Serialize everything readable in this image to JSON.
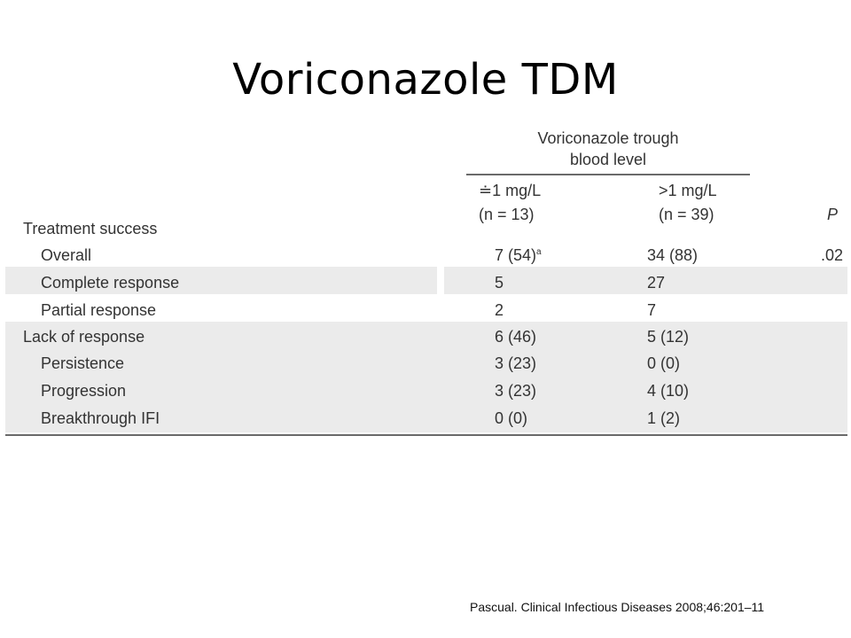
{
  "slide": {
    "title": "Voriconazole TDM",
    "citation": "Pascual. Clinical Infectious Diseases 2008;46:201–11"
  },
  "table": {
    "group_header_line1": "Voriconazole trough",
    "group_header_line2": "blood level",
    "col1_line1": "≐1 mg/L",
    "col1_line2": "(n = 13)",
    "col2_line1": ">1 mg/L",
    "col2_line2": "(n = 39)",
    "col3": "P",
    "section_label": "Treatment success",
    "rows": [
      {
        "label": "Overall",
        "c1": "7 (54)",
        "c1_sup": "a",
        "c2": "34 (88)",
        "p": ".02"
      },
      {
        "label": "Complete response",
        "c1": "5",
        "c1_sup": "",
        "c2": "27",
        "p": ""
      },
      {
        "label": "Partial response",
        "c1": "2",
        "c1_sup": "",
        "c2": "7",
        "p": ""
      },
      {
        "label": "Lack of response",
        "c1": "6 (46)",
        "c1_sup": "",
        "c2": "5 (12)",
        "p": ""
      },
      {
        "label": "Persistence",
        "c1": "3 (23)",
        "c1_sup": "",
        "c2": "0 (0)",
        "p": ""
      },
      {
        "label": "Progression",
        "c1": "3 (23)",
        "c1_sup": "",
        "c2": "4 (10)",
        "p": ""
      },
      {
        "label": "Breakthrough IFI",
        "c1": "0 (0)",
        "c1_sup": "",
        "c2": "1 (2)",
        "p": ""
      }
    ]
  }
}
